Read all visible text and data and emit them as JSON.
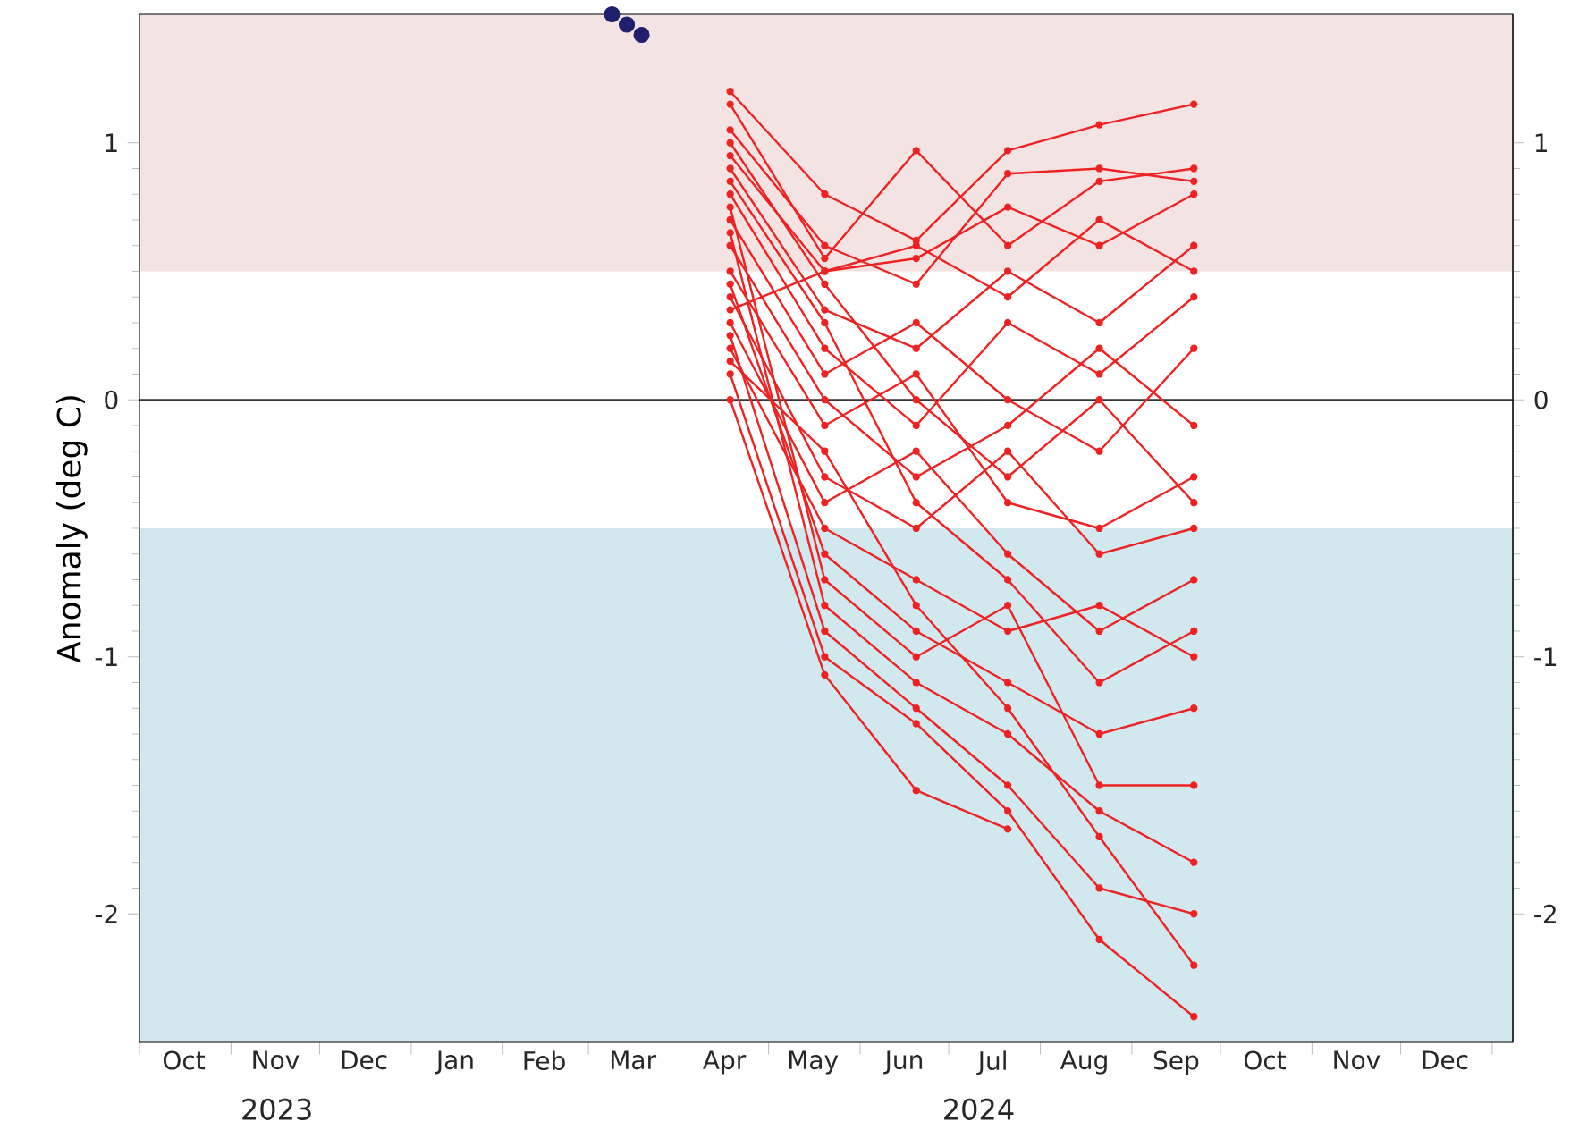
{
  "chart_data": {
    "type": "line",
    "ylabel": "Anomaly (deg C)",
    "xlim": [
      "2023-10-01",
      "2025-01-08"
    ],
    "ylim": [
      -2.5,
      1.5
    ],
    "xticks": [
      {
        "value": "2023-10-01",
        "label": null
      },
      {
        "value": "2023-11-01",
        "label": null
      },
      {
        "value": "2023-12-01",
        "label": null
      },
      {
        "value": "2024-01-01",
        "label": null
      },
      {
        "value": "2024-02-01",
        "label": null
      },
      {
        "value": "2024-03-01",
        "label": null
      },
      {
        "value": "2024-04-01",
        "label": null
      },
      {
        "value": "2024-05-01",
        "label": null
      },
      {
        "value": "2024-06-01",
        "label": null
      },
      {
        "value": "2024-07-01",
        "label": null
      },
      {
        "value": "2024-08-01",
        "label": null
      },
      {
        "value": "2024-09-01",
        "label": null
      },
      {
        "value": "2024-10-01",
        "label": null
      },
      {
        "value": "2024-11-01",
        "label": null
      },
      {
        "value": "2024-12-01",
        "label": null
      },
      {
        "value": "2025-01-01",
        "label": null
      },
      {
        "value": "2023-10-16",
        "label": "Oct"
      },
      {
        "value": "2023-11-16",
        "label": "Nov"
      },
      {
        "value": "2023-12-16",
        "label": "Dec"
      },
      {
        "value": "2024-01-16",
        "label": "Jan"
      },
      {
        "value": "2024-02-15",
        "label": "Feb"
      },
      {
        "value": "2024-03-16",
        "label": "Mar"
      },
      {
        "value": "2024-04-16",
        "label": "Apr"
      },
      {
        "value": "2024-05-16",
        "label": "May"
      },
      {
        "value": "2024-06-16",
        "label": "Jun"
      },
      {
        "value": "2024-07-16",
        "label": "Jul"
      },
      {
        "value": "2024-08-16",
        "label": "Aug"
      },
      {
        "value": "2024-09-16",
        "label": "Sep"
      },
      {
        "value": "2024-10-16",
        "label": "Oct"
      },
      {
        "value": "2024-11-16",
        "label": "Nov"
      },
      {
        "value": "2024-12-16",
        "label": "Dec"
      }
    ],
    "yticks": [
      -2,
      -1,
      0,
      1
    ],
    "y2lim": [
      -2.5,
      1.5
    ],
    "y2ticks": [
      -2,
      -1,
      0,
      1
    ],
    "annotations": [
      "2023",
      "2024"
    ],
    "bands": [
      {
        "axis": "y",
        "from": 0.5,
        "to": 1.5,
        "color": "#f3e3e3"
      },
      {
        "axis": "y",
        "from": -2.5,
        "to": -0.5,
        "color": "#d1e8ee"
      }
    ],
    "ref_lines": [
      {
        "axis": "y",
        "value": 0,
        "color": "#333333"
      }
    ],
    "grid": false,
    "marker": "circle",
    "x": [
      "2024-04-18",
      "2024-05-20",
      "2024-06-20",
      "2024-07-21",
      "2024-08-21",
      "2024-09-22"
    ],
    "series": [
      {
        "type": "scatter",
        "color": "#1f1f6e",
        "x": [
          "2024-03-09",
          "2024-03-14",
          "2024-03-19"
        ],
        "values": [
          1.5,
          1.46,
          1.42
        ]
      },
      {
        "color": "#ee2222",
        "values": [
          1.2,
          0.8,
          0.62,
          0.97,
          1.07,
          1.15
        ]
      },
      {
        "color": "#ee2222",
        "values": [
          1.15,
          0.55,
          0.97,
          0.6,
          0.85,
          0.9
        ]
      },
      {
        "color": "#ee2222",
        "values": [
          1.05,
          0.6,
          0.45,
          0.88,
          0.9,
          0.85
        ]
      },
      {
        "color": "#ee2222",
        "values": [
          0.95,
          0.5,
          0.55,
          0.75,
          0.6,
          0.8
        ]
      },
      {
        "color": "#ee2222",
        "values": [
          0.9,
          0.35,
          0.2,
          0.5,
          0.3,
          0.6
        ]
      },
      {
        "color": "#ee2222",
        "values": [
          0.8,
          0.2,
          -0.1,
          0.3,
          0.1,
          0.4
        ]
      },
      {
        "color": "#ee2222",
        "values": [
          0.7,
          0.1,
          0.3,
          0.0,
          -0.2,
          0.2
        ]
      },
      {
        "color": "#ee2222",
        "values": [
          0.6,
          0.0,
          -0.3,
          -0.1,
          0.2,
          -0.1
        ]
      },
      {
        "color": "#ee2222",
        "values": [
          0.5,
          -0.1,
          0.1,
          -0.4,
          -0.5,
          -0.3
        ]
      },
      {
        "color": "#ee2222",
        "values": [
          0.4,
          -0.3,
          -0.5,
          -0.2,
          -0.6,
          -0.5
        ]
      },
      {
        "color": "#ee2222",
        "values": [
          0.3,
          -0.4,
          -0.2,
          -0.6,
          -0.9,
          -0.7
        ]
      },
      {
        "color": "#ee2222",
        "values": [
          0.2,
          -0.5,
          -0.7,
          -0.9,
          -0.8,
          -1.0
        ]
      },
      {
        "color": "#ee2222",
        "values": [
          0.45,
          -0.6,
          -0.9,
          -1.1,
          -1.3,
          -1.2
        ]
      },
      {
        "color": "#ee2222",
        "values": [
          0.75,
          -0.7,
          -1.0,
          -0.8,
          -1.5,
          -1.5
        ]
      },
      {
        "color": "#ee2222",
        "values": [
          0.65,
          -0.8,
          -1.1,
          -1.3,
          -1.6,
          -1.8
        ]
      },
      {
        "color": "#ee2222",
        "values": [
          0.25,
          -0.9,
          -1.2,
          -1.5,
          -1.9,
          -2.0
        ]
      },
      {
        "color": "#ee2222",
        "values": [
          0.1,
          -1.0,
          -1.26,
          -1.6,
          -2.1,
          -2.4
        ]
      },
      {
        "color": "#ee2222",
        "values": [
          0.0,
          -1.07,
          -1.52,
          -1.67,
          null,
          null
        ]
      },
      {
        "color": "#ee2222",
        "values": [
          0.35,
          0.5,
          0.6,
          0.4,
          0.7,
          0.5
        ]
      },
      {
        "color": "#ee2222",
        "values": [
          1.0,
          0.45,
          0.0,
          -0.3,
          0.0,
          -0.4
        ]
      },
      {
        "color": "#ee2222",
        "values": [
          0.15,
          -0.2,
          -0.8,
          -1.2,
          -1.7,
          -2.2
        ]
      },
      {
        "color": "#ee2222",
        "values": [
          0.85,
          0.3,
          -0.4,
          -0.7,
          -1.1,
          -0.9
        ]
      }
    ]
  }
}
